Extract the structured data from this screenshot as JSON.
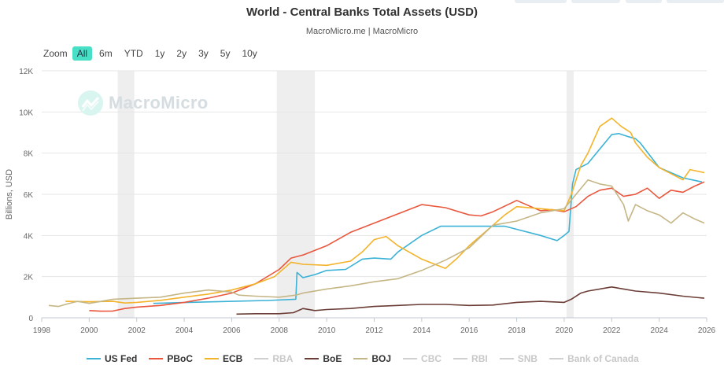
{
  "header": {
    "title": "World - Central Banks Total Assets (USD)",
    "subtitle": "MacroMicro.me | MacroMicro"
  },
  "watermark": {
    "text": "MacroMicro",
    "icon": "macromicro-logo-icon"
  },
  "zoom": {
    "label": "Zoom",
    "options": [
      "All",
      "6m",
      "YTD",
      "1y",
      "2y",
      "3y",
      "5y",
      "10y"
    ],
    "selected": "All"
  },
  "chart_data": {
    "type": "line",
    "title": "World - Central Banks Total Assets (USD)",
    "ylabel": "Billions, USD",
    "xlabel": "",
    "xlim": [
      1998,
      2026
    ],
    "ylim": [
      0,
      12000
    ],
    "x_ticks": [
      "1998",
      "2000",
      "2002",
      "2004",
      "2006",
      "2008",
      "2010",
      "2012",
      "2014",
      "2016",
      "2018",
      "2020",
      "2022",
      "2024",
      "2026"
    ],
    "y_ticks": [
      "0",
      "2K",
      "4K",
      "6K",
      "8K",
      "10K",
      "12K"
    ],
    "recession_shading": [
      [
        2001.2,
        2001.9
      ],
      [
        2007.9,
        2009.5
      ],
      [
        2020.1,
        2020.4
      ]
    ],
    "series": [
      {
        "name": "US Fed",
        "color": "#3bb2d6",
        "visible": true,
        "points": [
          [
            2002.7,
            700
          ],
          [
            2004,
            740
          ],
          [
            2006,
            800
          ],
          [
            2007.5,
            840
          ],
          [
            2008.7,
            900
          ],
          [
            2008.75,
            2200
          ],
          [
            2009,
            1950
          ],
          [
            2009.5,
            2100
          ],
          [
            2010,
            2300
          ],
          [
            2010.8,
            2350
          ],
          [
            2011.5,
            2850
          ],
          [
            2012,
            2900
          ],
          [
            2012.7,
            2850
          ],
          [
            2013,
            3200
          ],
          [
            2014,
            4000
          ],
          [
            2014.8,
            4450
          ],
          [
            2016,
            4450
          ],
          [
            2017,
            4450
          ],
          [
            2017.5,
            4450
          ],
          [
            2018,
            4300
          ],
          [
            2019,
            4000
          ],
          [
            2019.7,
            3750
          ],
          [
            2020,
            4000
          ],
          [
            2020.2,
            4200
          ],
          [
            2020.35,
            6500
          ],
          [
            2020.5,
            7200
          ],
          [
            2021,
            7500
          ],
          [
            2021.5,
            8200
          ],
          [
            2022,
            8900
          ],
          [
            2022.3,
            8950
          ],
          [
            2022.7,
            8800
          ],
          [
            2023,
            8700
          ],
          [
            2023.2,
            8500
          ],
          [
            2024,
            7300
          ],
          [
            2025,
            6800
          ],
          [
            2025.8,
            6600
          ]
        ]
      },
      {
        "name": "PBoC",
        "color": "#e9573e",
        "visible": true,
        "points": [
          [
            2000,
            350
          ],
          [
            2000.5,
            320
          ],
          [
            2001,
            330
          ],
          [
            2001.5,
            450
          ],
          [
            2002,
            520
          ],
          [
            2003,
            600
          ],
          [
            2004,
            750
          ],
          [
            2005,
            950
          ],
          [
            2006,
            1200
          ],
          [
            2007,
            1650
          ],
          [
            2008,
            2350
          ],
          [
            2008.5,
            2900
          ],
          [
            2009,
            3050
          ],
          [
            2010,
            3500
          ],
          [
            2011,
            4150
          ],
          [
            2012,
            4600
          ],
          [
            2013,
            5050
          ],
          [
            2014,
            5500
          ],
          [
            2015,
            5350
          ],
          [
            2016,
            5000
          ],
          [
            2016.5,
            4950
          ],
          [
            2017,
            5150
          ],
          [
            2018,
            5700
          ],
          [
            2018.8,
            5300
          ],
          [
            2019,
            5200
          ],
          [
            2019.5,
            5250
          ],
          [
            2020,
            5150
          ],
          [
            2020.5,
            5400
          ],
          [
            2021,
            5900
          ],
          [
            2021.5,
            6200
          ],
          [
            2022,
            6300
          ],
          [
            2022.5,
            5900
          ],
          [
            2023,
            6000
          ],
          [
            2023.5,
            6300
          ],
          [
            2024,
            5800
          ],
          [
            2024.5,
            6200
          ],
          [
            2025,
            6100
          ],
          [
            2025.5,
            6400
          ],
          [
            2025.9,
            6600
          ]
        ]
      },
      {
        "name": "ECB",
        "color": "#f3b32a",
        "visible": true,
        "points": [
          [
            1999,
            800
          ],
          [
            2000,
            780
          ],
          [
            2001,
            800
          ],
          [
            2001.5,
            720
          ],
          [
            2002,
            750
          ],
          [
            2003,
            850
          ],
          [
            2004,
            1000
          ],
          [
            2005,
            1150
          ],
          [
            2006,
            1350
          ],
          [
            2007,
            1650
          ],
          [
            2007.8,
            2000
          ],
          [
            2008.5,
            2700
          ],
          [
            2009,
            2600
          ],
          [
            2010,
            2550
          ],
          [
            2011,
            2750
          ],
          [
            2011.5,
            3200
          ],
          [
            2012,
            3800
          ],
          [
            2012.5,
            3950
          ],
          [
            2013,
            3500
          ],
          [
            2014,
            2850
          ],
          [
            2015,
            2400
          ],
          [
            2015.5,
            2900
          ],
          [
            2016,
            3500
          ],
          [
            2017,
            4500
          ],
          [
            2017.5,
            5000
          ],
          [
            2018,
            5400
          ],
          [
            2019,
            5300
          ],
          [
            2020,
            5200
          ],
          [
            2020.3,
            6000
          ],
          [
            2020.7,
            7400
          ],
          [
            2021,
            8000
          ],
          [
            2021.5,
            9300
          ],
          [
            2022,
            9700
          ],
          [
            2022.4,
            9300
          ],
          [
            2022.8,
            9000
          ],
          [
            2023,
            8500
          ],
          [
            2023.5,
            7800
          ],
          [
            2024,
            7300
          ],
          [
            2024.5,
            7000
          ],
          [
            2025,
            6700
          ],
          [
            2025.3,
            7200
          ],
          [
            2025.9,
            7050
          ]
        ]
      },
      {
        "name": "RBA",
        "color": "#c8c8c8",
        "visible": false,
        "points": []
      },
      {
        "name": "BoE",
        "color": "#6b3d36",
        "visible": true,
        "points": [
          [
            2006.2,
            180
          ],
          [
            2007,
            200
          ],
          [
            2008,
            200
          ],
          [
            2008.6,
            250
          ],
          [
            2009,
            450
          ],
          [
            2009.5,
            350
          ],
          [
            2010,
            400
          ],
          [
            2011,
            450
          ],
          [
            2012,
            550
          ],
          [
            2013,
            600
          ],
          [
            2014,
            650
          ],
          [
            2015,
            650
          ],
          [
            2016,
            600
          ],
          [
            2017,
            620
          ],
          [
            2018,
            750
          ],
          [
            2019,
            800
          ],
          [
            2020,
            750
          ],
          [
            2020.3,
            900
          ],
          [
            2020.7,
            1200
          ],
          [
            2021,
            1300
          ],
          [
            2022,
            1500
          ],
          [
            2022.5,
            1400
          ],
          [
            2023,
            1300
          ],
          [
            2024,
            1200
          ],
          [
            2025,
            1050
          ],
          [
            2025.9,
            950
          ]
        ]
      },
      {
        "name": "BOJ",
        "color": "#c5b686",
        "visible": true,
        "points": [
          [
            1998.3,
            600
          ],
          [
            1998.7,
            550
          ],
          [
            1999,
            650
          ],
          [
            1999.5,
            800
          ],
          [
            2000,
            700
          ],
          [
            2001,
            900
          ],
          [
            2002,
            950
          ],
          [
            2003,
            1000
          ],
          [
            2004,
            1200
          ],
          [
            2005,
            1350
          ],
          [
            2006,
            1250
          ],
          [
            2006.3,
            1100
          ],
          [
            2007,
            1050
          ],
          [
            2008,
            1000
          ],
          [
            2008.7,
            1100
          ],
          [
            2009,
            1200
          ],
          [
            2010,
            1400
          ],
          [
            2011,
            1550
          ],
          [
            2012,
            1750
          ],
          [
            2013,
            1900
          ],
          [
            2014,
            2300
          ],
          [
            2015,
            2800
          ],
          [
            2016,
            3400
          ],
          [
            2017,
            4500
          ],
          [
            2018,
            4700
          ],
          [
            2019,
            5100
          ],
          [
            2020,
            5300
          ],
          [
            2020.5,
            6000
          ],
          [
            2021,
            6700
          ],
          [
            2021.5,
            6500
          ],
          [
            2022,
            6400
          ],
          [
            2022.5,
            5500
          ],
          [
            2022.7,
            4700
          ],
          [
            2023,
            5500
          ],
          [
            2023.5,
            5200
          ],
          [
            2024,
            5000
          ],
          [
            2024.5,
            4600
          ],
          [
            2025,
            5100
          ],
          [
            2025.5,
            4800
          ],
          [
            2025.9,
            4600
          ]
        ]
      },
      {
        "name": "CBC",
        "color": "#c8c8c8",
        "visible": false,
        "points": []
      },
      {
        "name": "RBI",
        "color": "#c8c8c8",
        "visible": false,
        "points": []
      },
      {
        "name": "SNB",
        "color": "#c8c8c8",
        "visible": false,
        "points": []
      },
      {
        "name": "Bank of Canada",
        "color": "#c8c8c8",
        "visible": false,
        "points": []
      }
    ]
  }
}
